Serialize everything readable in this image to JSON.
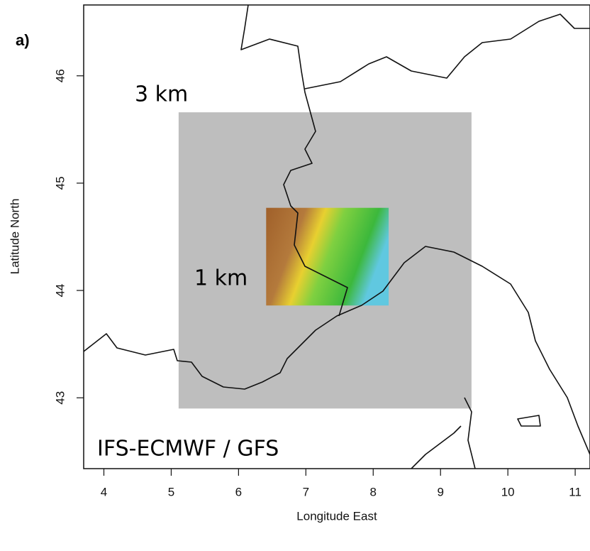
{
  "chart_data": {
    "type": "map",
    "panel_label": "a)",
    "x_label": "Longitude East",
    "y_label": "Latitude North",
    "xlim": [
      3.7,
      11.22
    ],
    "ylim": [
      42.34,
      46.66
    ],
    "xticks": [
      4,
      5,
      6,
      7,
      8,
      9,
      10,
      11
    ],
    "yticks": [
      43,
      44,
      45,
      46
    ],
    "domains": [
      {
        "label": "3 km",
        "color": "#bebebe",
        "lon": [
          5.11,
          9.46
        ],
        "lat": [
          42.9,
          45.66
        ]
      },
      {
        "label": "1 km",
        "color": "terrain",
        "lon": [
          6.41,
          8.23
        ],
        "lat": [
          43.86,
          44.77
        ]
      }
    ],
    "annotation": "IFS-ECMWF / GFS"
  }
}
